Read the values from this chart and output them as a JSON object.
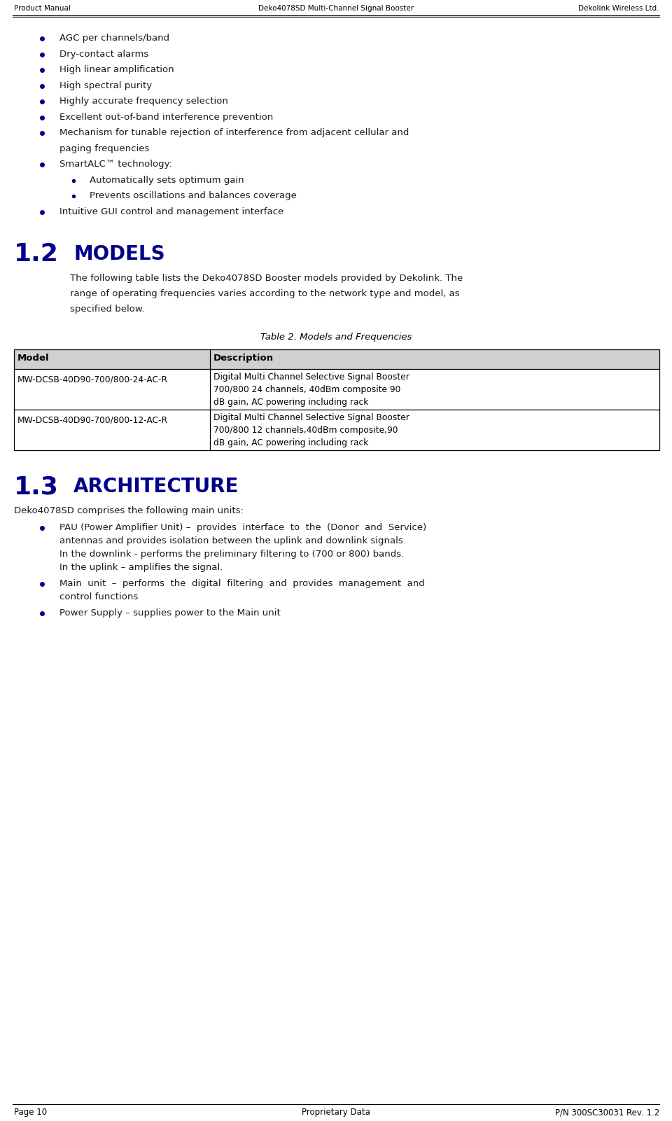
{
  "header_left": "Product Manual",
  "header_center": "Deko4078SD Multi-Channel Signal Booster",
  "header_right": "Dekolink Wireless Ltd.",
  "footer_left": "Page 10",
  "footer_center": "Proprietary Data",
  "footer_right": "P/N 300SC30031 Rev. 1.2",
  "section_color": "#00008B",
  "section_12_number": "1.2",
  "section_12_title": "Models",
  "section_13_number": "1.3",
  "section_13_title": "Architecture",
  "bullet_color": "#00008B",
  "text_color": "#1a1a1a",
  "bullet_items_level1": [
    "AGC per channels/band",
    "Dry-contact alarms",
    "High linear amplification",
    "High spectral purity",
    "Highly accurate frequency selection",
    "Excellent out-of-band interference prevention",
    "MULTILINE:Mechanism for tunable rejection of interference from adjacent cellular and|paging frequencies",
    "SmartALC™ technology:",
    "Intuitive GUI control and management interface"
  ],
  "bullet_items_level2": [
    "Automatically sets optimum gain",
    "Prevents oscillations and balances coverage"
  ],
  "section_12_intro_lines": [
    "The following table lists the Deko4078SD Booster models provided by Dekolink. The",
    "range of operating frequencies varies according to the network type and model, as",
    "specified below."
  ],
  "table_caption": "Table 2. Models and Frequencies",
  "table_headers": [
    "Model",
    "Description"
  ],
  "table_rows": [
    [
      "MW-DCSB-40D90-700/800-24-AC-R",
      "Digital Multi Channel Selective Signal Booster\n700/800 24 channels, 40dBm composite 90\ndB gain, AC powering including rack"
    ],
    [
      "MW-DCSB-40D90-700/800-12-AC-R",
      "Digital Multi Channel Selective Signal Booster\n700/800 12 channels,40dBm composite,90\ndB gain, AC powering including rack"
    ]
  ],
  "section_13_intro": "Deko4078SD comprises the following main units:",
  "arch_bullet1_lines": [
    "PAU (Power Amplifier Unit) –  provides  interface  to  the  (Donor  and  Service)",
    "antennas and provides isolation between the uplink and downlink signals.",
    "In the downlink - performs the preliminary filtering to (700 or 800) bands.",
    "In the uplink – amplifies the signal."
  ],
  "arch_bullet2_lines": [
    "Main  unit  –  performs  the  digital  filtering  and  provides  management  and",
    "control functions"
  ],
  "arch_bullet3_lines": [
    "Power Supply – supplies power to the Main unit"
  ]
}
